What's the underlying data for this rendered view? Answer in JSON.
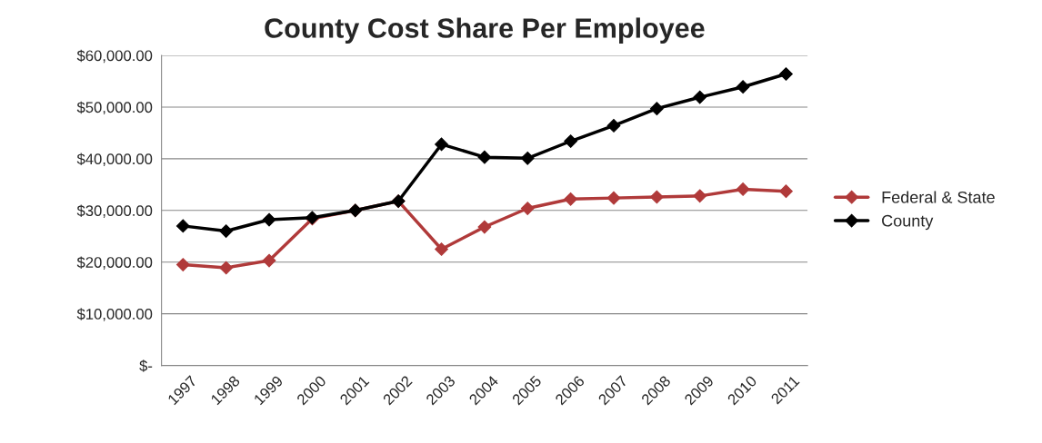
{
  "chart_data": {
    "type": "line",
    "title": "County Cost Share Per Employee",
    "categories": [
      "1997",
      "1998",
      "1999",
      "2000",
      "2001",
      "2002",
      "2003",
      "2004",
      "2005",
      "2006",
      "2007",
      "2008",
      "2009",
      "2010",
      "2011"
    ],
    "series": [
      {
        "name": "Federal & State",
        "color": "#b03a3a",
        "values": [
          19500,
          18900,
          20300,
          28400,
          30000,
          31800,
          22500,
          26800,
          30400,
          32200,
          32400,
          32600,
          32800,
          34100,
          33700
        ]
      },
      {
        "name": "County",
        "color": "#000000",
        "values": [
          27000,
          26000,
          28200,
          28600,
          30000,
          31800,
          42800,
          40300,
          40100,
          43400,
          46400,
          49700,
          51900,
          53900,
          56400
        ]
      }
    ],
    "ylim": [
      0,
      60000
    ],
    "yticks": [
      {
        "value": 0,
        "label": "$-"
      },
      {
        "value": 10000,
        "label": "$10,000.00"
      },
      {
        "value": 20000,
        "label": "$20,000.00"
      },
      {
        "value": 30000,
        "label": "$30,000.00"
      },
      {
        "value": 40000,
        "label": "$40,000.00"
      },
      {
        "value": 50000,
        "label": "$50,000.00"
      },
      {
        "value": 60000,
        "label": "$60,000.00"
      }
    ],
    "grid": "y",
    "legend": "right",
    "marker": "diamond",
    "line_style": "solid"
  }
}
